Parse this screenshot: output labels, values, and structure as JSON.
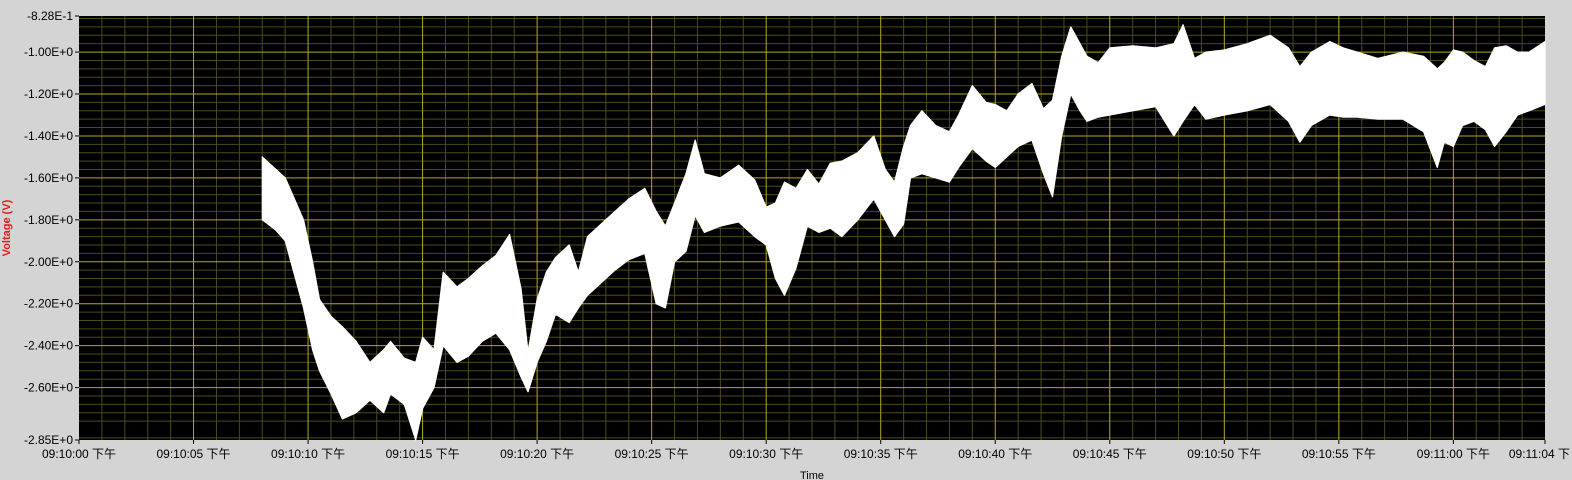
{
  "chart_data": {
    "type": "area",
    "title": "",
    "xlabel": "Time",
    "ylabel": "Voltage (V)",
    "xlim": [
      0,
      64
    ],
    "ylim": [
      -2.85,
      -0.828
    ],
    "grid": true,
    "x_tick_values": [
      0,
      5,
      10,
      15,
      20,
      25,
      30,
      35,
      40,
      45,
      50,
      55,
      60,
      64
    ],
    "x_tick_labels": [
      "09:10:00 下午",
      "09:10:05 下午",
      "09:10:10 下午",
      "09:10:15 下午",
      "09:10:20 下午",
      "09:10:25 下午",
      "09:10:30 下午",
      "09:10:35 下午",
      "09:10:40 下午",
      "09:10:45 下午",
      "09:10:50 下午",
      "09:10:55 下午",
      "09:11:00 下午",
      "09:11:04 下"
    ],
    "y_tick_values": [
      -0.828,
      -1.0,
      -1.2,
      -1.4,
      -1.6,
      -1.8,
      -2.0,
      -2.2,
      -2.4,
      -2.6,
      -2.85
    ],
    "y_tick_labels": [
      "-8.28E-1",
      "-1.00E+0",
      "-1.20E+0",
      "-1.40E+0",
      "-1.60E+0",
      "-1.80E+0",
      "-2.00E+0",
      "-2.20E+0",
      "-2.40E+0",
      "-2.60E+0",
      "-2.85E+0"
    ],
    "series": [
      {
        "x": [
          8.0,
          8.6,
          9.0,
          9.8,
          10.2,
          10.5,
          11.0,
          11.5,
          12.1,
          12.7,
          13.3,
          13.6,
          14.2,
          14.7,
          15.0,
          15.5,
          15.9,
          16.5,
          17.0,
          17.6,
          18.2,
          18.8,
          19.3,
          19.6,
          20.0,
          20.4,
          20.8,
          21.4,
          21.8,
          22.2,
          22.8,
          23.4,
          24.0,
          24.7,
          25.2,
          25.6,
          26.0,
          26.5,
          26.9,
          27.3,
          28.0,
          28.8,
          29.5,
          30.0,
          30.4,
          30.8,
          31.3,
          31.8,
          32.3,
          32.8,
          33.3,
          34.0,
          34.7,
          35.2,
          35.6,
          36.0,
          36.3,
          36.8,
          37.4,
          38.0,
          38.4,
          39.0,
          39.6,
          40.0,
          40.5,
          41.0,
          41.6,
          42.1,
          42.5,
          42.9,
          43.3,
          43.7,
          44.0,
          44.5,
          45.0,
          46.0,
          47.0,
          47.8,
          48.2,
          48.7,
          49.2,
          50.0,
          51.0,
          52.0,
          52.8,
          53.3,
          53.8,
          54.6,
          55.2,
          55.8,
          56.7,
          57.8,
          58.7,
          59.3,
          59.6,
          60.0,
          60.4,
          60.9,
          61.4,
          61.8,
          62.3,
          62.8,
          63.3,
          64.0
        ],
        "upper": [
          -1.5,
          -1.56,
          -1.6,
          -1.8,
          -2.0,
          -2.18,
          -2.26,
          -2.31,
          -2.38,
          -2.48,
          -2.42,
          -2.38,
          -2.46,
          -2.48,
          -2.36,
          -2.42,
          -2.05,
          -2.12,
          -2.08,
          -2.02,
          -1.97,
          -1.87,
          -2.13,
          -2.43,
          -2.18,
          -2.05,
          -1.98,
          -1.92,
          -2.05,
          -1.88,
          -1.82,
          -1.76,
          -1.7,
          -1.65,
          -1.76,
          -1.83,
          -1.72,
          -1.58,
          -1.42,
          -1.58,
          -1.6,
          -1.54,
          -1.61,
          -1.74,
          -1.72,
          -1.62,
          -1.65,
          -1.56,
          -1.63,
          -1.53,
          -1.52,
          -1.48,
          -1.4,
          -1.56,
          -1.62,
          -1.45,
          -1.35,
          -1.28,
          -1.35,
          -1.38,
          -1.3,
          -1.16,
          -1.24,
          -1.25,
          -1.28,
          -1.2,
          -1.15,
          -1.27,
          -1.23,
          -1.02,
          -0.88,
          -0.96,
          -1.02,
          -1.05,
          -0.98,
          -0.97,
          -0.98,
          -0.96,
          -0.87,
          -1.03,
          -1.0,
          -0.99,
          -0.96,
          -0.92,
          -0.98,
          -1.07,
          -1.0,
          -0.95,
          -0.98,
          -1.0,
          -1.03,
          -1.0,
          -1.02,
          -1.08,
          -1.05,
          -0.99,
          -1.0,
          -1.04,
          -1.07,
          -0.98,
          -0.97,
          -1.0,
          -1.0,
          -0.95
        ],
        "lower": [
          -1.8,
          -1.85,
          -1.9,
          -2.22,
          -2.42,
          -2.52,
          -2.63,
          -2.75,
          -2.72,
          -2.66,
          -2.72,
          -2.63,
          -2.68,
          -2.85,
          -2.7,
          -2.6,
          -2.4,
          -2.48,
          -2.45,
          -2.38,
          -2.34,
          -2.42,
          -2.55,
          -2.62,
          -2.48,
          -2.38,
          -2.25,
          -2.29,
          -2.22,
          -2.16,
          -2.1,
          -2.04,
          -1.99,
          -1.96,
          -2.2,
          -2.22,
          -2.0,
          -1.95,
          -1.78,
          -1.86,
          -1.83,
          -1.81,
          -1.88,
          -1.92,
          -2.08,
          -2.16,
          -2.03,
          -1.83,
          -1.86,
          -1.84,
          -1.88,
          -1.8,
          -1.7,
          -1.8,
          -1.88,
          -1.82,
          -1.6,
          -1.58,
          -1.6,
          -1.62,
          -1.55,
          -1.46,
          -1.52,
          -1.55,
          -1.5,
          -1.45,
          -1.42,
          -1.58,
          -1.69,
          -1.4,
          -1.2,
          -1.28,
          -1.33,
          -1.31,
          -1.3,
          -1.28,
          -1.26,
          -1.4,
          -1.33,
          -1.25,
          -1.32,
          -1.3,
          -1.28,
          -1.25,
          -1.33,
          -1.43,
          -1.35,
          -1.3,
          -1.31,
          -1.31,
          -1.32,
          -1.32,
          -1.38,
          -1.55,
          -1.43,
          -1.45,
          -1.35,
          -1.33,
          -1.37,
          -1.45,
          -1.38,
          -1.3,
          -1.28,
          -1.25
        ]
      }
    ],
    "colors": {
      "plot_background": "#000000",
      "frame": "#d4d4d4",
      "major_grid": "#b5a823",
      "minor_grid": "#4d4a1c",
      "trace": "#ffffff",
      "ylabel": "#e21b1b"
    }
  }
}
